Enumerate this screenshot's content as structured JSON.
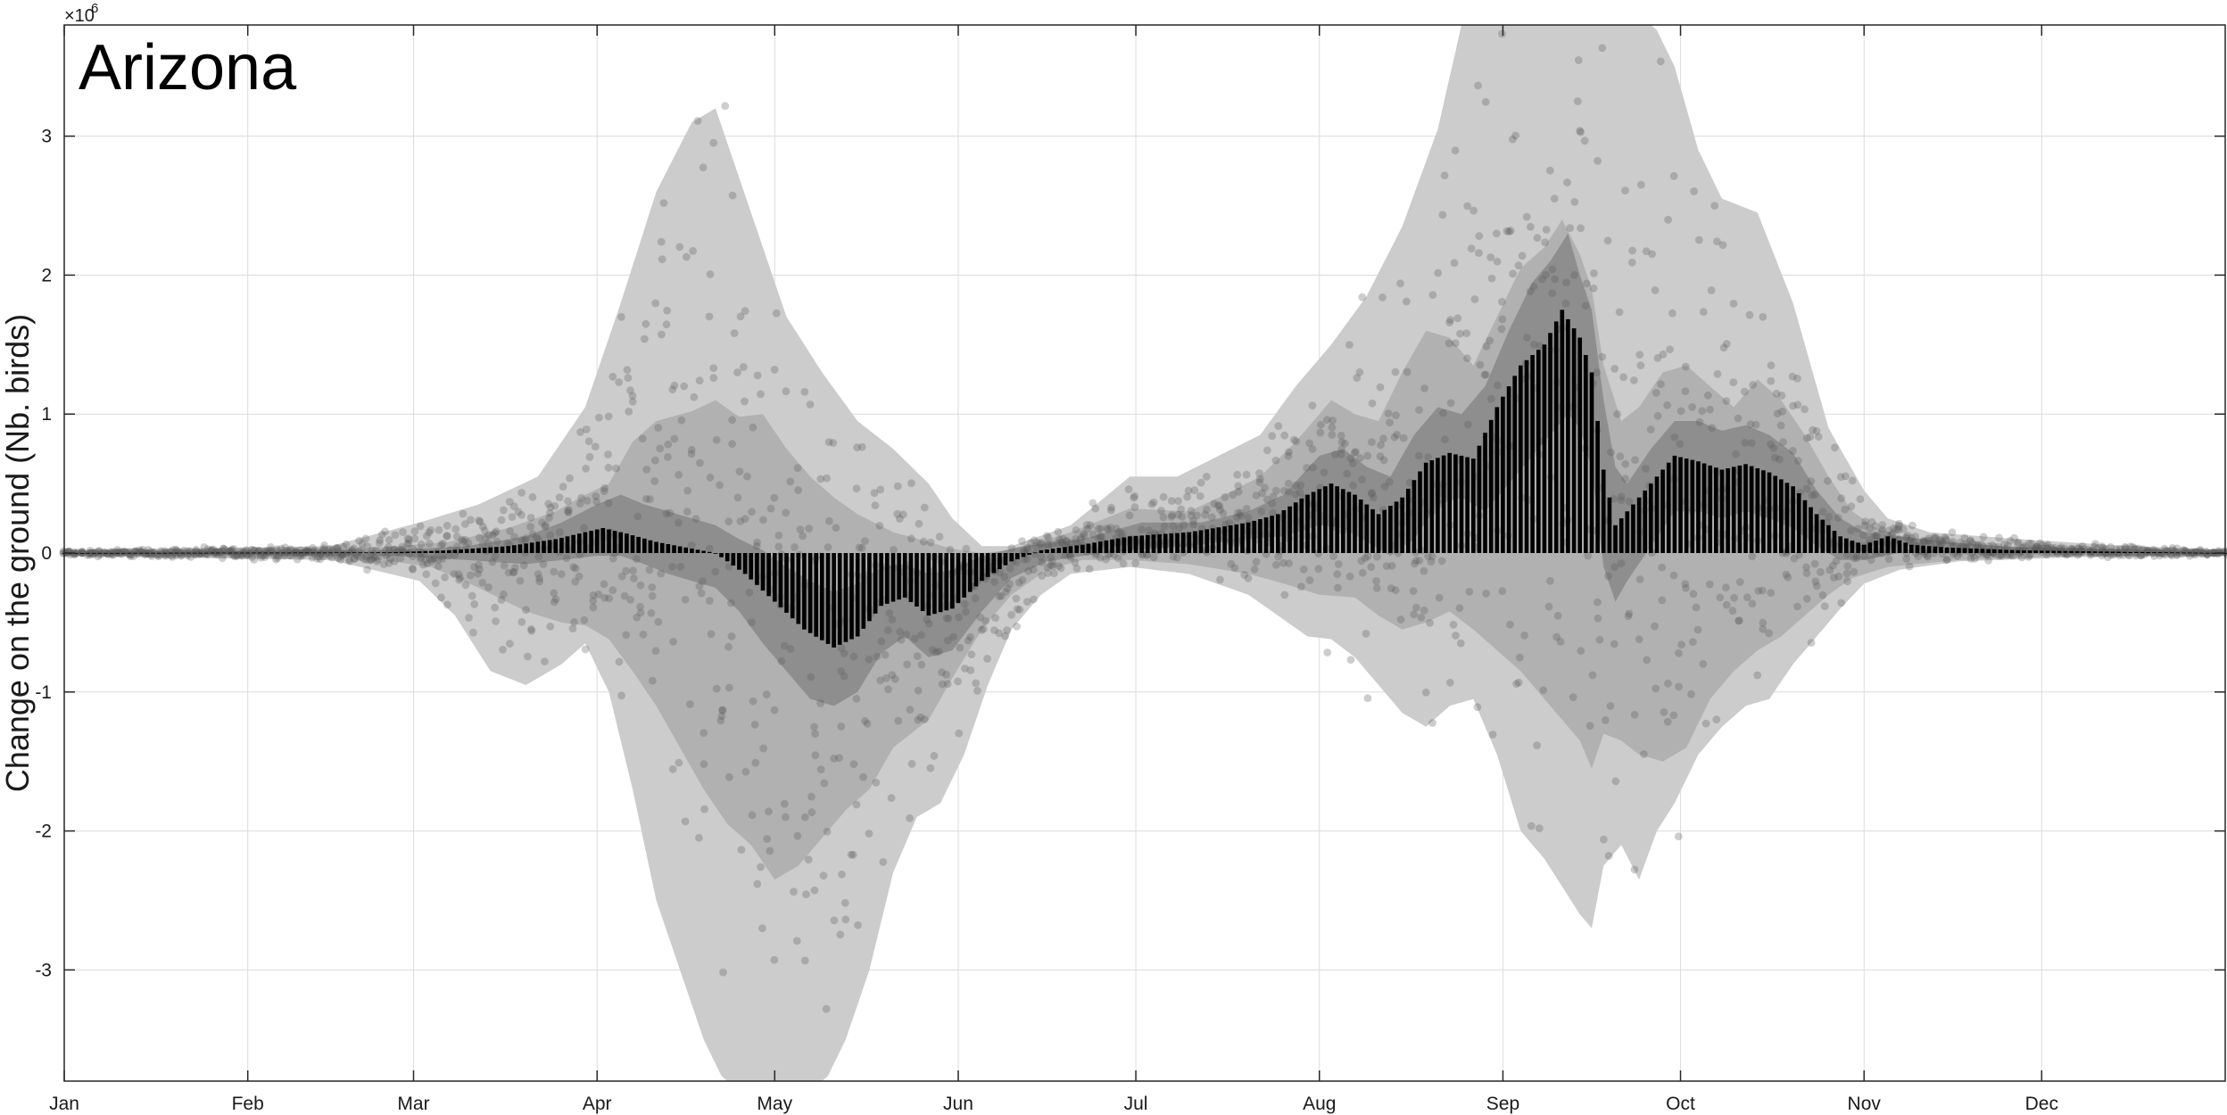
{
  "chart_data": {
    "type": "bar",
    "title": "Arizona",
    "ylabel": "Change on the ground (Nb. birds)",
    "y_exponent_label": "×10",
    "y_exponent_power": "6",
    "ylim": [
      -3.8,
      3.8
    ],
    "xlim_days": [
      0,
      365
    ],
    "grid": true,
    "month_ticks": [
      {
        "label": "Jan",
        "day": 0
      },
      {
        "label": "Feb",
        "day": 31
      },
      {
        "label": "Mar",
        "day": 59
      },
      {
        "label": "Apr",
        "day": 90
      },
      {
        "label": "May",
        "day": 120
      },
      {
        "label": "Jun",
        "day": 151
      },
      {
        "label": "Jul",
        "day": 181
      },
      {
        "label": "Aug",
        "day": 212
      },
      {
        "label": "Sep",
        "day": 243
      },
      {
        "label": "Oct",
        "day": 273
      },
      {
        "label": "Nov",
        "day": 304
      },
      {
        "label": "Dec",
        "day": 334
      }
    ],
    "y_ticks": [
      {
        "label": "-3",
        "value": -3
      },
      {
        "label": "-2",
        "value": -2
      },
      {
        "label": "-1",
        "value": -1
      },
      {
        "label": "0",
        "value": 0
      },
      {
        "label": "1",
        "value": 1
      },
      {
        "label": "2",
        "value": 2
      },
      {
        "label": "3",
        "value": 3
      }
    ],
    "mean_anchors": [
      [
        0,
        0
      ],
      [
        55,
        0.005
      ],
      [
        65,
        0.02
      ],
      [
        75,
        0.05
      ],
      [
        83,
        0.1
      ],
      [
        87,
        0.14
      ],
      [
        91,
        0.18
      ],
      [
        95,
        0.14
      ],
      [
        100,
        0.08
      ],
      [
        105,
        0.04
      ],
      [
        110,
        0.0
      ],
      [
        115,
        -0.15
      ],
      [
        120,
        -0.35
      ],
      [
        125,
        -0.55
      ],
      [
        130,
        -0.68
      ],
      [
        134,
        -0.6
      ],
      [
        138,
        -0.38
      ],
      [
        142,
        -0.32
      ],
      [
        146,
        -0.45
      ],
      [
        150,
        -0.4
      ],
      [
        155,
        -0.2
      ],
      [
        160,
        -0.06
      ],
      [
        165,
        0.02
      ],
      [
        172,
        0.06
      ],
      [
        180,
        0.12
      ],
      [
        190,
        0.15
      ],
      [
        200,
        0.22
      ],
      [
        205,
        0.28
      ],
      [
        210,
        0.42
      ],
      [
        214,
        0.5
      ],
      [
        218,
        0.42
      ],
      [
        222,
        0.28
      ],
      [
        226,
        0.4
      ],
      [
        230,
        0.65
      ],
      [
        234,
        0.72
      ],
      [
        238,
        0.68
      ],
      [
        242,
        1.05
      ],
      [
        246,
        1.35
      ],
      [
        250,
        1.5
      ],
      [
        253,
        1.75
      ],
      [
        256,
        1.55
      ],
      [
        258,
        1.3
      ],
      [
        260,
        0.6
      ],
      [
        262,
        0.2
      ],
      [
        264,
        0.3
      ],
      [
        268,
        0.5
      ],
      [
        272,
        0.7
      ],
      [
        276,
        0.66
      ],
      [
        280,
        0.6
      ],
      [
        284,
        0.64
      ],
      [
        288,
        0.58
      ],
      [
        292,
        0.48
      ],
      [
        296,
        0.28
      ],
      [
        300,
        0.12
      ],
      [
        304,
        0.06
      ],
      [
        308,
        0.12
      ],
      [
        312,
        0.06
      ],
      [
        318,
        0.04
      ],
      [
        330,
        0.02
      ],
      [
        345,
        0.01
      ],
      [
        365,
        0
      ]
    ],
    "band_outer_upper": [
      [
        0,
        0.02
      ],
      [
        45,
        0.05
      ],
      [
        60,
        0.22
      ],
      [
        70,
        0.35
      ],
      [
        80,
        0.55
      ],
      [
        88,
        1.05
      ],
      [
        94,
        1.8
      ],
      [
        100,
        2.6
      ],
      [
        106,
        3.1
      ],
      [
        110,
        3.2
      ],
      [
        114,
        2.7
      ],
      [
        118,
        2.2
      ],
      [
        122,
        1.7
      ],
      [
        128,
        1.3
      ],
      [
        134,
        0.95
      ],
      [
        140,
        0.75
      ],
      [
        146,
        0.5
      ],
      [
        150,
        0.25
      ],
      [
        155,
        0.05
      ],
      [
        160,
        0.05
      ],
      [
        170,
        0.2
      ],
      [
        180,
        0.55
      ],
      [
        188,
        0.55
      ],
      [
        195,
        0.7
      ],
      [
        202,
        0.85
      ],
      [
        208,
        1.2
      ],
      [
        214,
        1.5
      ],
      [
        220,
        1.85
      ],
      [
        226,
        2.35
      ],
      [
        232,
        3.05
      ],
      [
        236,
        3.8
      ],
      [
        244,
        3.85
      ],
      [
        250,
        3.8
      ],
      [
        258,
        3.85
      ],
      [
        264,
        3.8
      ],
      [
        268,
        3.85
      ],
      [
        272,
        3.5
      ],
      [
        276,
        2.9
      ],
      [
        280,
        2.55
      ],
      [
        286,
        2.45
      ],
      [
        292,
        1.8
      ],
      [
        298,
        0.9
      ],
      [
        304,
        0.45
      ],
      [
        308,
        0.25
      ],
      [
        315,
        0.15
      ],
      [
        330,
        0.1
      ],
      [
        345,
        0.06
      ],
      [
        365,
        0.02
      ]
    ],
    "band_outer_lower": [
      [
        0,
        -0.02
      ],
      [
        45,
        -0.05
      ],
      [
        60,
        -0.2
      ],
      [
        66,
        -0.45
      ],
      [
        72,
        -0.85
      ],
      [
        78,
        -0.95
      ],
      [
        84,
        -0.8
      ],
      [
        88,
        -0.65
      ],
      [
        92,
        -1.0
      ],
      [
        96,
        -1.7
      ],
      [
        100,
        -2.5
      ],
      [
        104,
        -3.0
      ],
      [
        108,
        -3.5
      ],
      [
        112,
        -3.85
      ],
      [
        128,
        -3.85
      ],
      [
        132,
        -3.5
      ],
      [
        136,
        -3.0
      ],
      [
        140,
        -2.3
      ],
      [
        144,
        -1.9
      ],
      [
        148,
        -1.8
      ],
      [
        152,
        -1.45
      ],
      [
        156,
        -0.95
      ],
      [
        160,
        -0.55
      ],
      [
        165,
        -0.3
      ],
      [
        170,
        -0.15
      ],
      [
        180,
        -0.1
      ],
      [
        190,
        -0.15
      ],
      [
        200,
        -0.3
      ],
      [
        205,
        -0.45
      ],
      [
        210,
        -0.6
      ],
      [
        214,
        -0.62
      ],
      [
        218,
        -0.75
      ],
      [
        222,
        -0.95
      ],
      [
        226,
        -1.15
      ],
      [
        230,
        -1.25
      ],
      [
        234,
        -1.1
      ],
      [
        238,
        -1.05
      ],
      [
        242,
        -1.45
      ],
      [
        246,
        -2.0
      ],
      [
        250,
        -2.2
      ],
      [
        253,
        -2.4
      ],
      [
        256,
        -2.6
      ],
      [
        258,
        -2.7
      ],
      [
        260,
        -2.25
      ],
      [
        263,
        -2.1
      ],
      [
        266,
        -2.35
      ],
      [
        269,
        -2.0
      ],
      [
        272,
        -1.8
      ],
      [
        276,
        -1.45
      ],
      [
        280,
        -1.25
      ],
      [
        284,
        -1.1
      ],
      [
        288,
        -1.05
      ],
      [
        292,
        -0.8
      ],
      [
        296,
        -0.6
      ],
      [
        300,
        -0.4
      ],
      [
        304,
        -0.22
      ],
      [
        310,
        -0.12
      ],
      [
        320,
        -0.06
      ],
      [
        340,
        -0.03
      ],
      [
        365,
        -0.02
      ]
    ],
    "band_mid_upper": [
      [
        0,
        0.01
      ],
      [
        50,
        0.03
      ],
      [
        65,
        0.08
      ],
      [
        75,
        0.18
      ],
      [
        83,
        0.3
      ],
      [
        88,
        0.42
      ],
      [
        92,
        0.5
      ],
      [
        96,
        0.8
      ],
      [
        100,
        0.95
      ],
      [
        106,
        1.02
      ],
      [
        110,
        1.1
      ],
      [
        114,
        0.98
      ],
      [
        118,
        1.0
      ],
      [
        122,
        0.75
      ],
      [
        126,
        0.55
      ],
      [
        130,
        0.4
      ],
      [
        134,
        0.28
      ],
      [
        140,
        0.15
      ],
      [
        146,
        0.08
      ],
      [
        150,
        0.03
      ],
      [
        155,
        0.0
      ],
      [
        160,
        0.02
      ],
      [
        170,
        0.15
      ],
      [
        180,
        0.32
      ],
      [
        190,
        0.3
      ],
      [
        196,
        0.42
      ],
      [
        202,
        0.55
      ],
      [
        208,
        0.8
      ],
      [
        214,
        1.1
      ],
      [
        218,
        1.0
      ],
      [
        222,
        0.95
      ],
      [
        226,
        1.3
      ],
      [
        230,
        1.6
      ],
      [
        234,
        1.55
      ],
      [
        238,
        1.35
      ],
      [
        242,
        1.7
      ],
      [
        246,
        2.05
      ],
      [
        250,
        2.2
      ],
      [
        253,
        2.4
      ],
      [
        256,
        2.15
      ],
      [
        258,
        1.9
      ],
      [
        260,
        1.35
      ],
      [
        263,
        0.95
      ],
      [
        266,
        1.05
      ],
      [
        270,
        1.3
      ],
      [
        274,
        1.35
      ],
      [
        278,
        1.2
      ],
      [
        282,
        1.05
      ],
      [
        286,
        1.25
      ],
      [
        290,
        1.1
      ],
      [
        294,
        0.85
      ],
      [
        298,
        0.55
      ],
      [
        302,
        0.3
      ],
      [
        306,
        0.18
      ],
      [
        312,
        0.1
      ],
      [
        325,
        0.05
      ],
      [
        345,
        0.03
      ],
      [
        365,
        0.01
      ]
    ],
    "band_mid_lower": [
      [
        0,
        -0.01
      ],
      [
        50,
        -0.03
      ],
      [
        62,
        -0.1
      ],
      [
        70,
        -0.25
      ],
      [
        78,
        -0.42
      ],
      [
        84,
        -0.5
      ],
      [
        88,
        -0.52
      ],
      [
        92,
        -0.62
      ],
      [
        96,
        -0.85
      ],
      [
        100,
        -1.1
      ],
      [
        104,
        -1.4
      ],
      [
        108,
        -1.7
      ],
      [
        112,
        -1.95
      ],
      [
        116,
        -2.1
      ],
      [
        120,
        -2.35
      ],
      [
        124,
        -2.25
      ],
      [
        128,
        -2.05
      ],
      [
        132,
        -1.85
      ],
      [
        136,
        -1.7
      ],
      [
        140,
        -1.4
      ],
      [
        146,
        -1.2
      ],
      [
        150,
        -0.9
      ],
      [
        155,
        -0.55
      ],
      [
        160,
        -0.3
      ],
      [
        166,
        -0.12
      ],
      [
        172,
        -0.05
      ],
      [
        180,
        -0.05
      ],
      [
        190,
        -0.08
      ],
      [
        200,
        -0.15
      ],
      [
        206,
        -0.22
      ],
      [
        212,
        -0.3
      ],
      [
        218,
        -0.32
      ],
      [
        222,
        -0.45
      ],
      [
        226,
        -0.55
      ],
      [
        230,
        -0.5
      ],
      [
        234,
        -0.42
      ],
      [
        238,
        -0.55
      ],
      [
        242,
        -0.7
      ],
      [
        246,
        -0.85
      ],
      [
        250,
        -1.05
      ],
      [
        253,
        -1.2
      ],
      [
        256,
        -1.35
      ],
      [
        258,
        -1.55
      ],
      [
        260,
        -1.3
      ],
      [
        263,
        -1.35
      ],
      [
        266,
        -1.45
      ],
      [
        270,
        -1.5
      ],
      [
        274,
        -1.4
      ],
      [
        278,
        -1.05
      ],
      [
        282,
        -0.85
      ],
      [
        286,
        -0.7
      ],
      [
        290,
        -0.6
      ],
      [
        294,
        -0.45
      ],
      [
        298,
        -0.3
      ],
      [
        302,
        -0.18
      ],
      [
        308,
        -0.1
      ],
      [
        320,
        -0.05
      ],
      [
        340,
        -0.02
      ],
      [
        365,
        -0.01
      ]
    ],
    "band_inner_upper": [
      [
        0,
        0.005
      ],
      [
        55,
        0.02
      ],
      [
        68,
        0.05
      ],
      [
        78,
        0.12
      ],
      [
        84,
        0.22
      ],
      [
        90,
        0.35
      ],
      [
        94,
        0.42
      ],
      [
        98,
        0.35
      ],
      [
        102,
        0.3
      ],
      [
        106,
        0.25
      ],
      [
        110,
        0.2
      ],
      [
        114,
        0.1
      ],
      [
        118,
        0.02
      ],
      [
        122,
        -0.1
      ],
      [
        126,
        -0.2
      ],
      [
        130,
        -0.28
      ],
      [
        134,
        -0.22
      ],
      [
        138,
        -0.1
      ],
      [
        142,
        -0.08
      ],
      [
        146,
        -0.15
      ],
      [
        150,
        -0.12
      ],
      [
        155,
        -0.02
      ],
      [
        162,
        0.05
      ],
      [
        172,
        0.1
      ],
      [
        182,
        0.22
      ],
      [
        192,
        0.22
      ],
      [
        200,
        0.3
      ],
      [
        206,
        0.42
      ],
      [
        212,
        0.7
      ],
      [
        216,
        0.75
      ],
      [
        220,
        0.62
      ],
      [
        224,
        0.55
      ],
      [
        228,
        0.85
      ],
      [
        232,
        1.05
      ],
      [
        236,
        1.0
      ],
      [
        240,
        1.2
      ],
      [
        244,
        1.6
      ],
      [
        248,
        1.95
      ],
      [
        251,
        2.1
      ],
      [
        254,
        2.3
      ],
      [
        256,
        2.0
      ],
      [
        258,
        1.75
      ],
      [
        260,
        1.1
      ],
      [
        262,
        0.62
      ],
      [
        264,
        0.5
      ],
      [
        268,
        0.75
      ],
      [
        272,
        0.95
      ],
      [
        276,
        0.95
      ],
      [
        280,
        0.88
      ],
      [
        284,
        0.92
      ],
      [
        288,
        0.85
      ],
      [
        292,
        0.72
      ],
      [
        296,
        0.45
      ],
      [
        300,
        0.25
      ],
      [
        304,
        0.15
      ],
      [
        310,
        0.12
      ],
      [
        318,
        0.08
      ],
      [
        330,
        0.04
      ],
      [
        350,
        0.02
      ],
      [
        365,
        0.005
      ]
    ],
    "band_inner_lower": [
      [
        0,
        -0.005
      ],
      [
        55,
        -0.02
      ],
      [
        68,
        -0.05
      ],
      [
        78,
        -0.08
      ],
      [
        84,
        -0.05
      ],
      [
        90,
        -0.02
      ],
      [
        94,
        -0.02
      ],
      [
        98,
        -0.08
      ],
      [
        102,
        -0.15
      ],
      [
        106,
        -0.2
      ],
      [
        110,
        -0.25
      ],
      [
        114,
        -0.42
      ],
      [
        118,
        -0.65
      ],
      [
        122,
        -0.85
      ],
      [
        126,
        -1.05
      ],
      [
        130,
        -1.1
      ],
      [
        134,
        -1.0
      ],
      [
        138,
        -0.72
      ],
      [
        142,
        -0.6
      ],
      [
        146,
        -0.75
      ],
      [
        150,
        -0.7
      ],
      [
        155,
        -0.42
      ],
      [
        160,
        -0.18
      ],
      [
        166,
        -0.06
      ],
      [
        172,
        -0.02
      ],
      [
        180,
        0.02
      ],
      [
        190,
        0.05
      ],
      [
        200,
        0.1
      ],
      [
        206,
        0.12
      ],
      [
        212,
        0.2
      ],
      [
        216,
        0.18
      ],
      [
        220,
        0.08
      ],
      [
        224,
        -0.02
      ],
      [
        228,
        0.1
      ],
      [
        232,
        0.35
      ],
      [
        236,
        0.4
      ],
      [
        240,
        0.3
      ],
      [
        244,
        0.5
      ],
      [
        248,
        0.7
      ],
      [
        251,
        0.85
      ],
      [
        254,
        1.0
      ],
      [
        256,
        0.9
      ],
      [
        258,
        0.6
      ],
      [
        260,
        -0.1
      ],
      [
        262,
        -0.35
      ],
      [
        264,
        -0.2
      ],
      [
        268,
        0.05
      ],
      [
        272,
        0.3
      ],
      [
        276,
        0.3
      ],
      [
        280,
        0.25
      ],
      [
        284,
        0.3
      ],
      [
        288,
        0.25
      ],
      [
        292,
        0.18
      ],
      [
        296,
        0.05
      ],
      [
        300,
        -0.05
      ],
      [
        304,
        -0.05
      ],
      [
        310,
        0.0
      ],
      [
        318,
        0.0
      ],
      [
        330,
        0.0
      ],
      [
        350,
        0.0
      ],
      [
        365,
        -0.005
      ]
    ],
    "scatter_points_per_day": 6,
    "colors": {
      "band_outer": "#cccccc",
      "band_mid": "#b1b1b1",
      "band_inner": "#8e8e8e",
      "bar": "#000000",
      "point": "#5a5a5a",
      "grid": "#dcdcdc",
      "axis": "#262626"
    }
  }
}
